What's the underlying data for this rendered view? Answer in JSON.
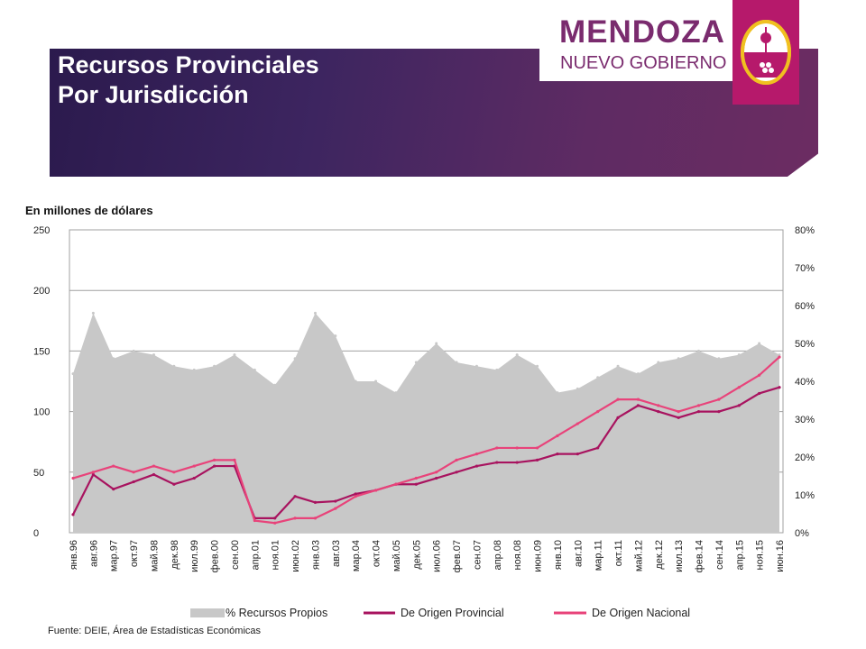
{
  "header": {
    "title_line1": "Recursos Provinciales",
    "title_line2": "Por Jurisdicción",
    "logo_main": "MENDOZA",
    "logo_sub": "NUEVO GOBIERNO"
  },
  "colors": {
    "banner_start": "#2b1a4d",
    "banner_end": "#6c2c62",
    "logo_text": "#7a2b6e",
    "shield_bg": "#b6196b",
    "area": "#c8c8c8",
    "provincial": "#a8135f",
    "nacional": "#e8437a"
  },
  "chart_data": {
    "type": "line",
    "unit_label": "En millones de dólares",
    "x": [
      "янв.96",
      "авг.96",
      "мар.97",
      "окт.97",
      "май.98",
      "дек.98",
      "июл.99",
      "фев.00",
      "сен.00",
      "апр.01",
      "ноя.01",
      "июн.02",
      "янв.03",
      "авг.03",
      "мар.04",
      "окт.04",
      "май.05",
      "дек.05",
      "июл.06",
      "фев.07",
      "сен.07",
      "апр.08",
      "ноя.08",
      "июн.09",
      "янв.10",
      "авг.10",
      "мар.11",
      "окт.11",
      "май.12",
      "дек.12",
      "июл.13",
      "фев.14",
      "сен.14",
      "апр.15",
      "ноя.15",
      "июн.16"
    ],
    "ylim": [
      0,
      250
    ],
    "yticks": [
      "0",
      "50",
      "100",
      "150",
      "200",
      "250"
    ],
    "y2lim": [
      0,
      0.8
    ],
    "y2ticks": [
      "0%",
      "10%",
      "20%",
      "30%",
      "40%",
      "50%",
      "60%",
      "70%",
      "80%"
    ],
    "grid": true,
    "legend_position": "bottom",
    "series": [
      {
        "name": "% Recursos Propios",
        "kind": "area",
        "axis": "right",
        "values": [
          0.42,
          0.58,
          0.46,
          0.48,
          0.47,
          0.44,
          0.43,
          0.44,
          0.47,
          0.43,
          0.39,
          0.46,
          0.58,
          0.52,
          0.4,
          0.4,
          0.37,
          0.45,
          0.5,
          0.45,
          0.44,
          0.43,
          0.47,
          0.44,
          0.37,
          0.38,
          0.41,
          0.44,
          0.42,
          0.45,
          0.46,
          0.48,
          0.46,
          0.47,
          0.5,
          0.47
        ]
      },
      {
        "name": "De Origen Provincial",
        "kind": "line",
        "axis": "left",
        "values": [
          15,
          48,
          36,
          42,
          48,
          40,
          45,
          55,
          55,
          12,
          12,
          30,
          25,
          26,
          32,
          35,
          40,
          40,
          45,
          50,
          55,
          58,
          58,
          60,
          65,
          65,
          70,
          95,
          105,
          100,
          95,
          100,
          100,
          105,
          115,
          120
        ]
      },
      {
        "name": "De Origen Nacional",
        "kind": "line",
        "axis": "left",
        "values": [
          45,
          50,
          55,
          50,
          55,
          50,
          55,
          60,
          60,
          10,
          8,
          12,
          12,
          20,
          30,
          35,
          40,
          45,
          50,
          60,
          65,
          70,
          70,
          70,
          80,
          90,
          100,
          110,
          110,
          105,
          100,
          105,
          110,
          120,
          130,
          145
        ]
      }
    ]
  },
  "legend": {
    "area_label": "% Recursos Propios",
    "provincial_label": "De Origen Provincial",
    "nacional_label": "De Origen Nacional"
  },
  "footer": {
    "source": "Fuente:  DEIE, Área de Estadísticas Económicas"
  }
}
